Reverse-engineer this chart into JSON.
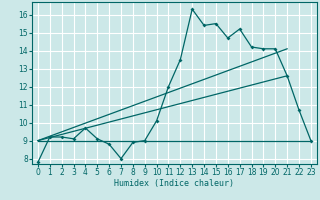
{
  "title": "",
  "xlabel": "Humidex (Indice chaleur)",
  "bg_color": "#cce8e8",
  "grid_color": "#ffffff",
  "line_color": "#006666",
  "xlim": [
    -0.5,
    23.5
  ],
  "ylim": [
    7.7,
    16.7
  ],
  "yticks": [
    8,
    9,
    10,
    11,
    12,
    13,
    14,
    15,
    16
  ],
  "xticks": [
    0,
    1,
    2,
    3,
    4,
    5,
    6,
    7,
    8,
    9,
    10,
    11,
    12,
    13,
    14,
    15,
    16,
    17,
    18,
    19,
    20,
    21,
    22,
    23
  ],
  "line1_x": [
    0,
    1,
    2,
    3,
    4,
    5,
    6,
    7,
    8,
    9,
    10,
    11,
    12,
    13,
    14,
    15,
    16,
    17,
    18,
    19,
    20,
    21,
    22,
    23
  ],
  "line1_y": [
    7.8,
    9.2,
    9.2,
    9.1,
    9.7,
    9.1,
    8.8,
    8.0,
    8.9,
    9.0,
    10.1,
    12.0,
    13.5,
    16.3,
    15.4,
    15.5,
    14.7,
    15.2,
    14.2,
    14.1,
    14.1,
    12.6,
    10.7,
    9.0
  ],
  "line2_x": [
    0,
    21
  ],
  "line2_y": [
    9.0,
    14.1
  ],
  "line3_x": [
    0,
    21
  ],
  "line3_y": [
    9.0,
    12.6
  ],
  "line4_x": [
    0,
    23
  ],
  "line4_y": [
    9.0,
    9.0
  ]
}
